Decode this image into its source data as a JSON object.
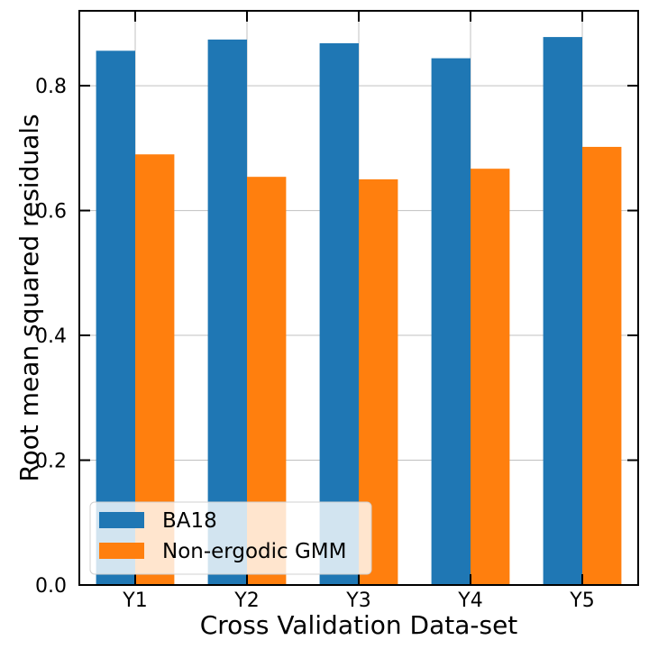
{
  "chart_data": {
    "type": "bar",
    "title": "",
    "xlabel": "Cross Validation Data-set",
    "ylabel": "Root mean squared residuals",
    "categories": [
      "Y1",
      "Y2",
      "Y3",
      "Y4",
      "Y5"
    ],
    "series": [
      {
        "name": "BA18",
        "color": "#1f77b4",
        "values": [
          0.856,
          0.874,
          0.868,
          0.844,
          0.878
        ]
      },
      {
        "name": "Non-ergodic GMM",
        "color": "#ff7f0e",
        "values": [
          0.69,
          0.654,
          0.65,
          0.667,
          0.702
        ]
      }
    ],
    "ylim": [
      0,
      0.92
    ],
    "yticks": [
      "0.0",
      "0.2",
      "0.4",
      "0.6",
      "0.8"
    ],
    "grid": true,
    "legend": "lower-left"
  }
}
